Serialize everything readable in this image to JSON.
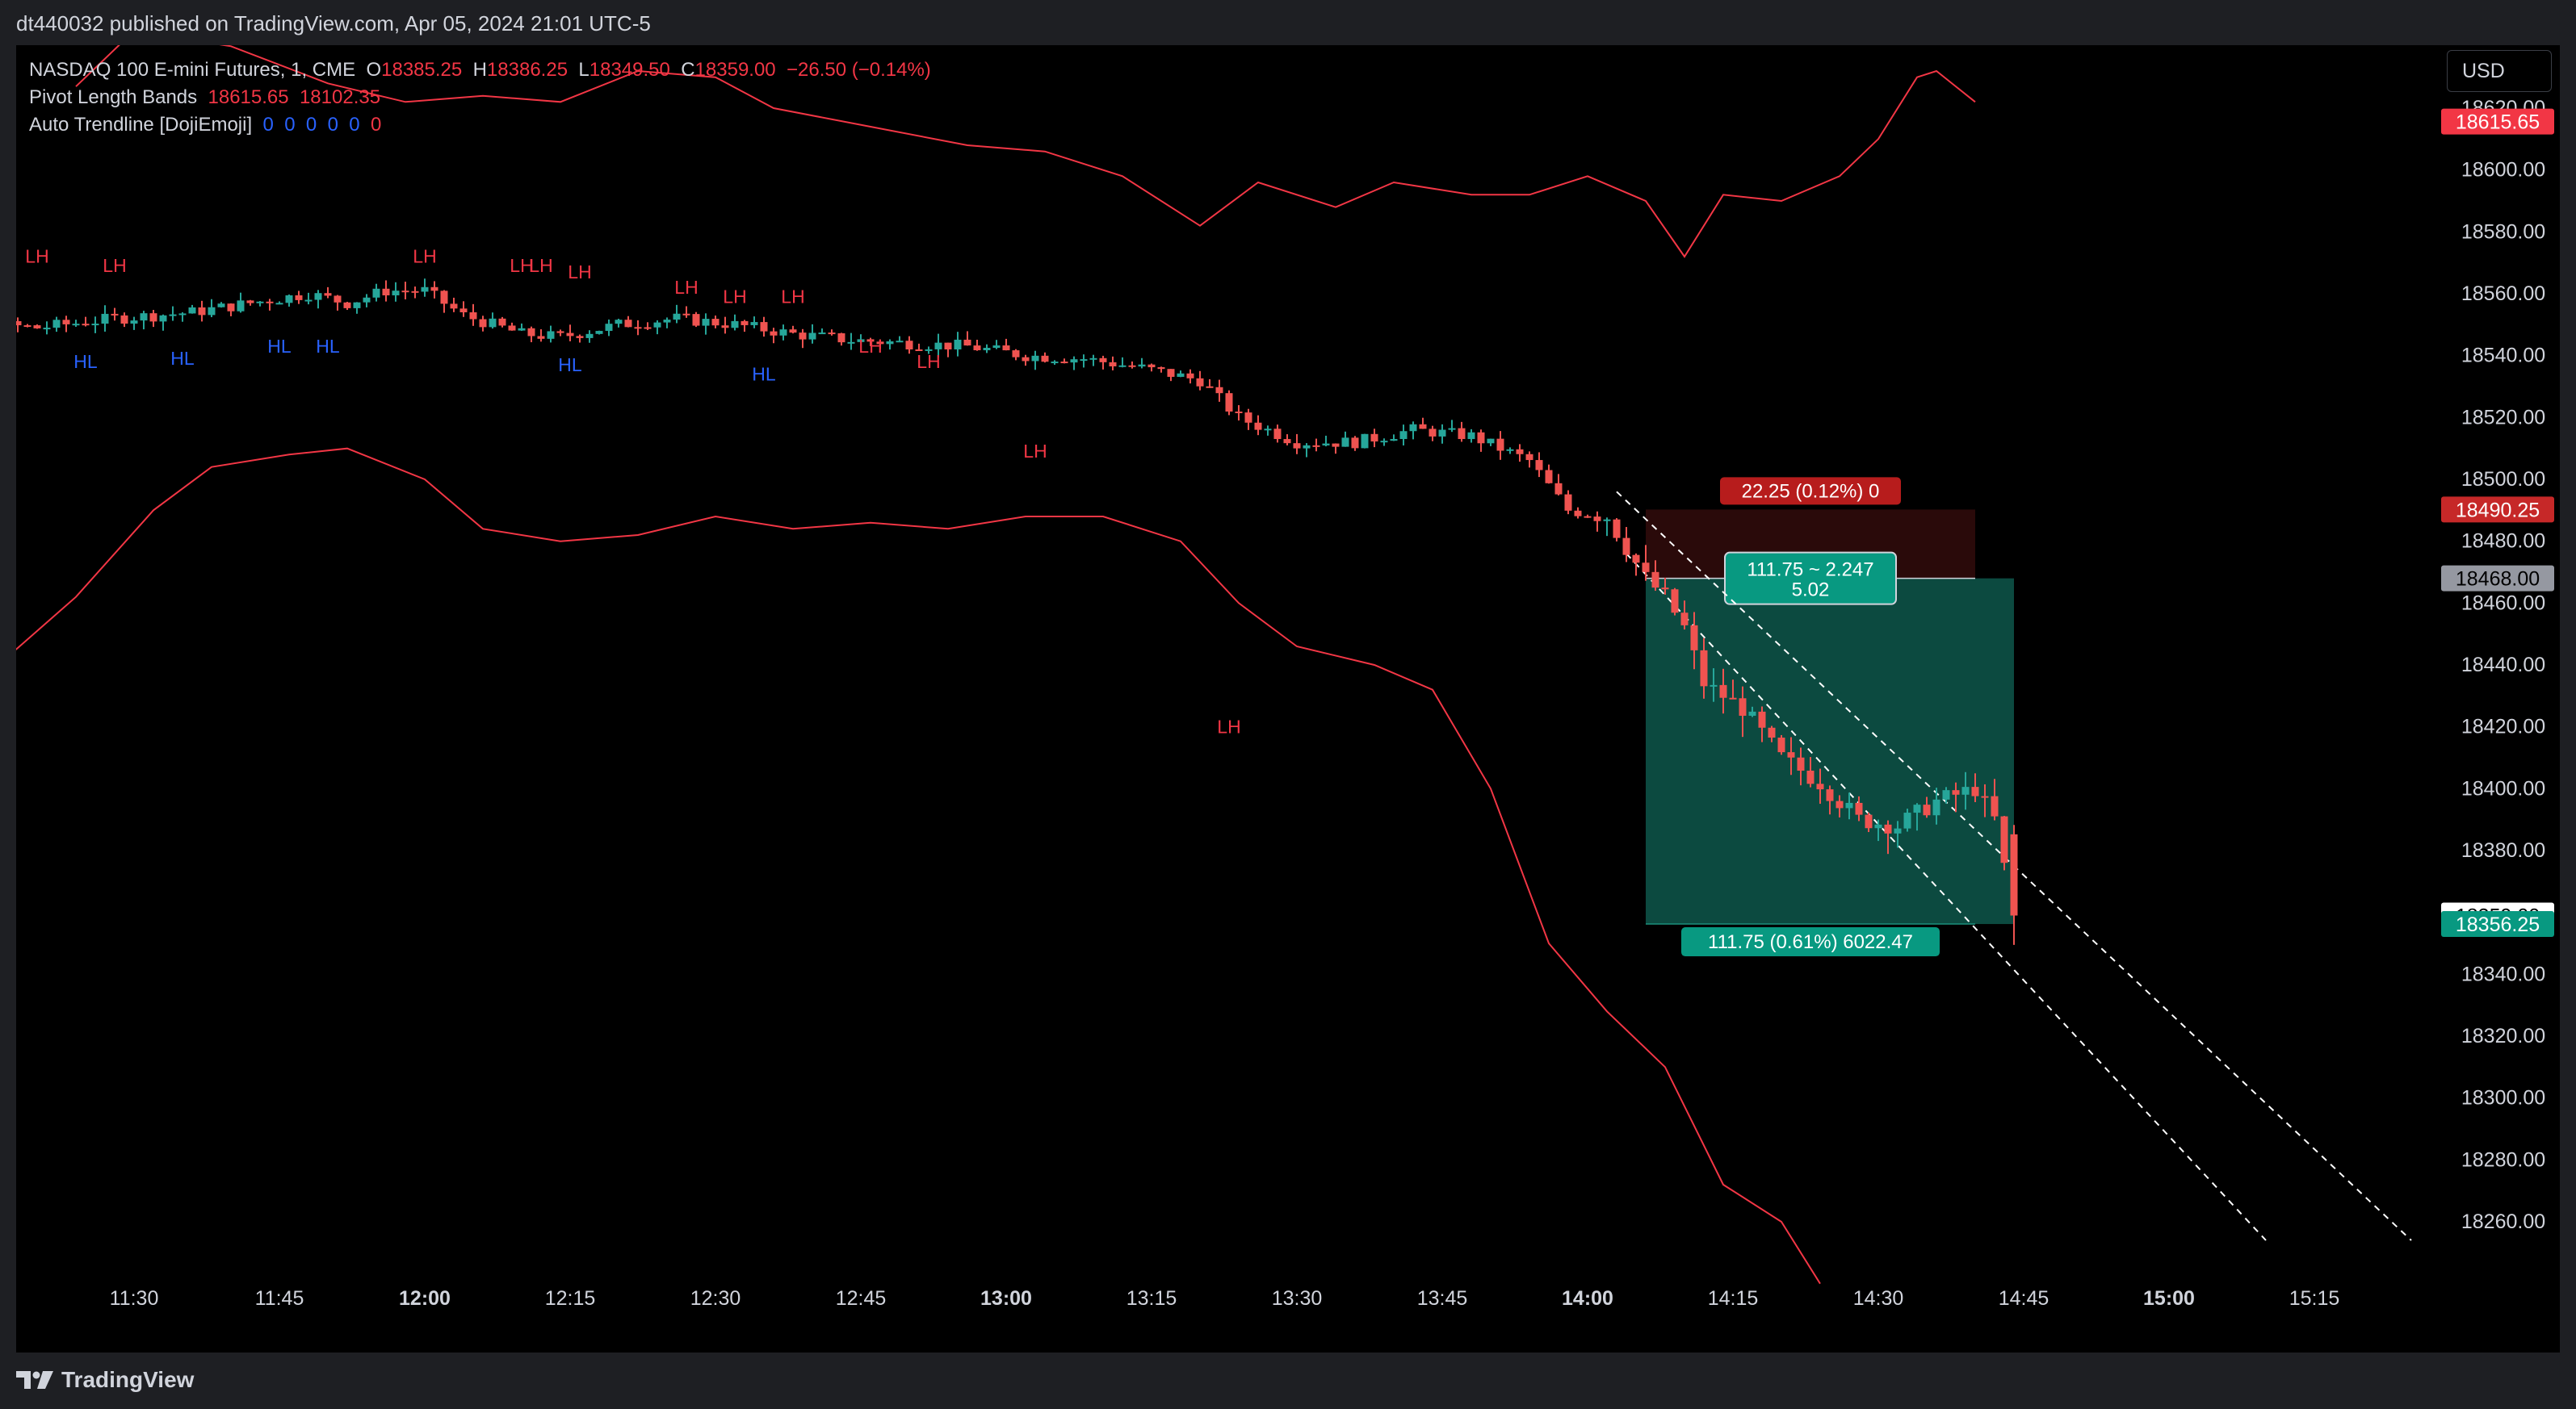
{
  "header": {
    "published": "dt440032 published on TradingView.com, Apr 05, 2024 21:01 UTC-5"
  },
  "legend": {
    "symbol": "NASDAQ 100 E-mini Futures, 1, CME",
    "o_label": "O",
    "o": "18385.25",
    "h_label": "H",
    "h": "18386.25",
    "l_label": "L",
    "l": "18349.50",
    "c_label": "C",
    "c": "18359.00",
    "change": "−26.50 (−0.14%)",
    "ind1_name": "Pivot Length Bands",
    "ind1_v1": "18615.65",
    "ind1_v2": "18102.35",
    "ind2_name": "Auto Trendline [DojiEmoji]",
    "ind2_vals": [
      "0",
      "0",
      "0",
      "0",
      "0"
    ],
    "ind2_last": "0"
  },
  "currency": "USD",
  "footer": {
    "brand": "TradingView"
  },
  "colors": {
    "bg": "#000000",
    "up": "#26a69a",
    "down": "#ef5350",
    "band": "#f23645",
    "lh": "#f23645",
    "hl": "#2962ff",
    "profit": "#089981",
    "stop": "#b71c1c"
  },
  "chart_data": {
    "type": "candlestick",
    "symbol": "NASDAQ 100 E-mini Futures",
    "interval": "1",
    "ylim": [
      18248,
      18640
    ],
    "yticks": [
      18260,
      18280,
      18300,
      18320,
      18340,
      18360,
      18380,
      18400,
      18420,
      18440,
      18460,
      18480,
      18500,
      18520,
      18540,
      18560,
      18580,
      18600,
      18620
    ],
    "xticks": [
      {
        "label": "11:30",
        "bold": false
      },
      {
        "label": "11:45",
        "bold": false
      },
      {
        "label": "12:00",
        "bold": true
      },
      {
        "label": "12:15",
        "bold": false
      },
      {
        "label": "12:30",
        "bold": false
      },
      {
        "label": "12:45",
        "bold": false
      },
      {
        "label": "13:00",
        "bold": true
      },
      {
        "label": "13:15",
        "bold": false
      },
      {
        "label": "13:30",
        "bold": false
      },
      {
        "label": "13:45",
        "bold": false
      },
      {
        "label": "14:00",
        "bold": true
      },
      {
        "label": "14:15",
        "bold": false
      },
      {
        "label": "14:30",
        "bold": false
      },
      {
        "label": "14:45",
        "bold": false
      },
      {
        "label": "15:00",
        "bold": true
      },
      {
        "label": "15:15",
        "bold": false
      }
    ],
    "price_tags": [
      {
        "label": "18615.65",
        "price": 18615.65,
        "style": "band"
      },
      {
        "label": "18490.25",
        "price": 18490.25,
        "style": "stop"
      },
      {
        "label": "18468.00",
        "price": 18468.0,
        "style": "entry"
      },
      {
        "label": "18359.00",
        "price": 18359.0,
        "style": "last"
      },
      {
        "label": "18356.25",
        "price": 18356.25,
        "style": "target"
      }
    ],
    "position": {
      "entry": 18468.0,
      "stop": 18490.25,
      "target": 18356.25,
      "stop_label": "22.25 (0.12%) 0",
      "center_label_1": "111.75 ~ 2.247",
      "center_label_2": "5.02",
      "target_label": "111.75 (0.61%) 6022.47"
    },
    "pivot_labels": [
      {
        "text": "LH",
        "t": "11:20",
        "price": 18570
      },
      {
        "text": "LH",
        "t": "11:28",
        "price": 18567
      },
      {
        "text": "HL",
        "t": "11:25",
        "price": 18536
      },
      {
        "text": "HL",
        "t": "11:35",
        "price": 18537
      },
      {
        "text": "HL",
        "t": "11:45",
        "price": 18541
      },
      {
        "text": "HL",
        "t": "11:50",
        "price": 18541
      },
      {
        "text": "LH",
        "t": "12:00",
        "price": 18570
      },
      {
        "text": "LH",
        "t": "12:10",
        "price": 18567
      },
      {
        "text": "LH",
        "t": "12:12",
        "price": 18567
      },
      {
        "text": "LH",
        "t": "12:16",
        "price": 18565
      },
      {
        "text": "HL",
        "t": "12:15",
        "price": 18535
      },
      {
        "text": "LH",
        "t": "12:27",
        "price": 18560
      },
      {
        "text": "LH",
        "t": "12:32",
        "price": 18557
      },
      {
        "text": "LH",
        "t": "12:38",
        "price": 18557
      },
      {
        "text": "HL",
        "t": "12:35",
        "price": 18532
      },
      {
        "text": "LH",
        "t": "12:46",
        "price": 18541
      },
      {
        "text": "LH",
        "t": "12:52",
        "price": 18536
      },
      {
        "text": "LH",
        "t": "13:03",
        "price": 18507
      },
      {
        "text": "LH",
        "t": "13:23",
        "price": 18418
      }
    ]
  }
}
